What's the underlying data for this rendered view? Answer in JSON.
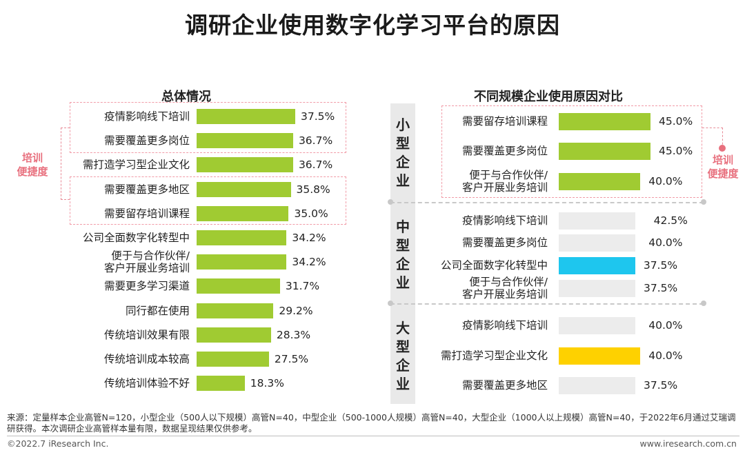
{
  "title": "调研企业使用数字化学习平台的原因",
  "footnote": "来源：定量样本企业高管N=120，小型企业（500人以下规模）高管N=40，中型企业（500-1000人规模）高管N=40，大型企业（1000人以上规模）高管N=40，于2022年6月通过艾瑞调研获得。本次调研企业高管样本量有限，数据呈现结果仅供参考。",
  "copyright": "©2022.7 iResearch Inc.",
  "website": "www.iresearch.com.cn",
  "callout_left": [
    "培训",
    "便捷度"
  ],
  "callout_right": [
    "培训",
    "便捷度"
  ],
  "colors": {
    "green": "#a0cb32",
    "blue": "#1ec6ee",
    "yellow": "#fed100",
    "gray": "#ececec",
    "pink": "#e8707e"
  },
  "chart_data": [
    {
      "type": "bar",
      "orientation": "horizontal",
      "title": "总体情况",
      "xlim": [
        0,
        40
      ],
      "categories": [
        "疫情影响线下培训",
        "需要覆盖更多岗位",
        "需打造学习型企业文化",
        "需要覆盖更多地区",
        "需要留存培训课程",
        "公司全面数字化转型中",
        "便于与合作伙伴/\n客户开展业务培训",
        "需要更多学习渠道",
        "同行都在使用",
        "传统培训效果有限",
        "传统培训成本较高",
        "传统培训体验不好"
      ],
      "values": [
        37.5,
        36.7,
        36.7,
        35.8,
        35.0,
        34.2,
        34.2,
        31.7,
        29.2,
        28.3,
        27.5,
        18.3
      ],
      "value_labels": [
        "37.5%",
        "36.7%",
        "36.7%",
        "35.8%",
        "35.0%",
        "34.2%",
        "34.2%",
        "31.7%",
        "29.2%",
        "28.3%",
        "27.5%",
        "18.3%"
      ],
      "unit": "%"
    },
    {
      "type": "bar",
      "orientation": "horizontal",
      "title": "不同规模企业使用原因对比",
      "xlim": [
        0,
        50
      ],
      "groups": [
        {
          "name": "小型企业",
          "categories": [
            "需要留存培训课程",
            "需要覆盖更多岗位",
            "便于与合作伙伴/\n客户开展业务培训"
          ],
          "values": [
            45.0,
            45.0,
            40.0
          ],
          "value_labels": [
            "45.0%",
            "45.0%",
            "40.0%"
          ],
          "highlight": [
            "green",
            "green",
            "green"
          ]
        },
        {
          "name": "中型企业",
          "categories": [
            "疫情影响线下培训",
            "需要覆盖更多岗位",
            "公司全面数字化转型中",
            "便于与合作伙伴/\n客户开展业务培训"
          ],
          "values": [
            42.5,
            40.0,
            37.5,
            37.5
          ],
          "value_labels": [
            "42.5%",
            "40.0%",
            "37.5%",
            "37.5%"
          ],
          "highlight": [
            "gray",
            "gray",
            "blue",
            "gray"
          ]
        },
        {
          "name": "大型企业",
          "categories": [
            "疫情影响线下培训",
            "需打造学习型企业文化",
            "需要覆盖更多地区"
          ],
          "values": [
            40.0,
            40.0,
            37.5
          ],
          "value_labels": [
            "40.0%",
            "40.0%",
            "37.5%"
          ],
          "highlight": [
            "gray",
            "yellow",
            "gray"
          ]
        }
      ],
      "unit": "%"
    }
  ]
}
